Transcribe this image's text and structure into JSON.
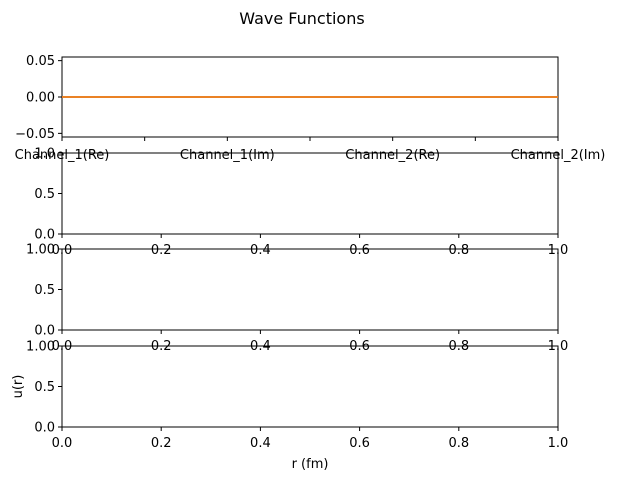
{
  "figure": {
    "title": "Wave Functions",
    "colors": {
      "axis": "#000000",
      "background": "#ffffff",
      "line_blue": "#1f77b4",
      "line_orange": "#ff7f0e"
    }
  },
  "chart_data": [
    {
      "type": "line",
      "title": "",
      "xlabel": "",
      "ylabel": "",
      "categories": [
        "Channel_1(Re)",
        "Channel_1(Im)",
        "Channel_2(Re)",
        "Channel_2(Im)"
      ],
      "ylim": [
        -0.055,
        0.055
      ],
      "yticks": [
        "0.05",
        "0.00",
        "−0.05"
      ],
      "ytick_values": [
        0.05,
        0.0,
        -0.05
      ],
      "series": [
        {
          "color": "#1f77b4",
          "values": [
            0,
            0,
            0,
            0
          ]
        },
        {
          "color": "#ff7f0e",
          "values": [
            0,
            0,
            0,
            0
          ]
        }
      ],
      "grid": false
    },
    {
      "type": "line",
      "title": "",
      "xlabel": "",
      "ylabel": "",
      "xlim": [
        0,
        1
      ],
      "ylim": [
        0,
        1
      ],
      "xticks": [
        "0.0",
        "0.2",
        "0.4",
        "0.6",
        "0.8",
        "1.0"
      ],
      "yticks": [
        "1.0",
        "0.5",
        "0.0"
      ],
      "series": [],
      "grid": false
    },
    {
      "type": "line",
      "title": "",
      "xlabel": "",
      "ylabel": "",
      "xlim": [
        0,
        1
      ],
      "ylim": [
        0,
        1
      ],
      "xticks": [
        "0.0",
        "0.2",
        "0.4",
        "0.6",
        "0.8",
        "1.0"
      ],
      "yticks": [
        "1.00",
        "0.5",
        "0.0"
      ],
      "series": [],
      "grid": false
    },
    {
      "type": "line",
      "title": "",
      "xlabel": "r (fm)",
      "ylabel": "u(r)",
      "xlim": [
        0,
        1
      ],
      "ylim": [
        0,
        1
      ],
      "xticks": [
        "0.0",
        "0.2",
        "0.4",
        "0.6",
        "0.8",
        "1.0"
      ],
      "yticks": [
        "1.00",
        "0.5",
        "0.0"
      ],
      "series": [],
      "grid": false
    }
  ]
}
